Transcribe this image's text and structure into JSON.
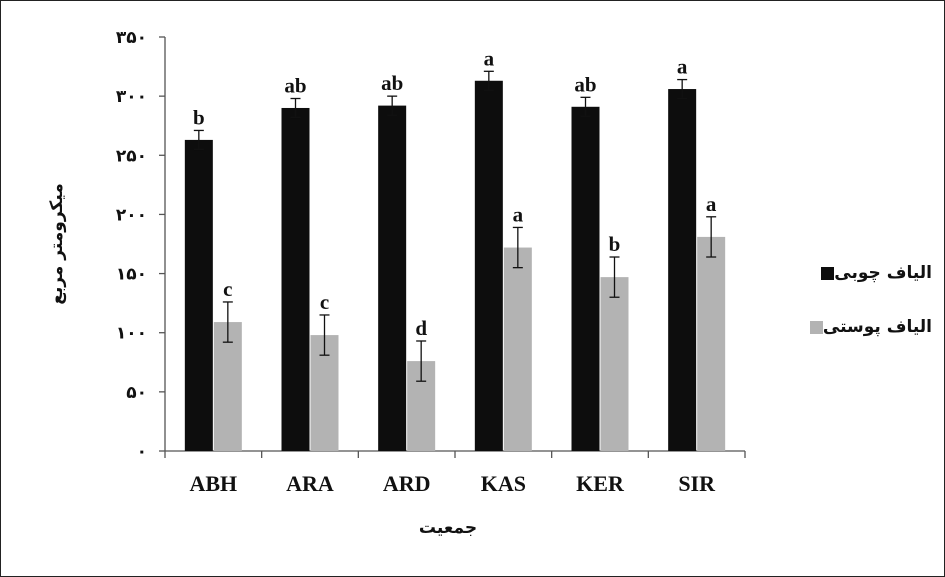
{
  "chart_data": {
    "type": "bar",
    "title": "",
    "xlabel": "جمعیت",
    "ylabel": "میکرومتر مربع",
    "ylim": [
      0,
      350
    ],
    "yticks": [
      "۰",
      "۵۰",
      "۱۰۰",
      "۱۵۰",
      "۲۰۰",
      "۲۵۰",
      "۳۰۰",
      "۳۵۰"
    ],
    "ytick_values": [
      0,
      50,
      100,
      150,
      200,
      250,
      300,
      350
    ],
    "categories": [
      "ABH",
      "ARA",
      "ARD",
      "KAS",
      "KER",
      "SIR"
    ],
    "grid": false,
    "legend_position": "right",
    "series": [
      {
        "name": "الیاف چوبی",
        "color": "#0d0d0d",
        "values": [
          263,
          290,
          292,
          313,
          291,
          306
        ],
        "errors": [
          8,
          8,
          8,
          8,
          8,
          8
        ],
        "labels": [
          "b",
          "ab",
          "ab",
          "a",
          "ab",
          "a"
        ]
      },
      {
        "name": "الیاف پوستی",
        "color": "#b3b3b3",
        "values": [
          109,
          98,
          76,
          172,
          147,
          181
        ],
        "errors": [
          17,
          17,
          17,
          17,
          17,
          17
        ],
        "labels": [
          "c",
          "c",
          "d",
          "a",
          "b",
          "a"
        ]
      }
    ]
  }
}
